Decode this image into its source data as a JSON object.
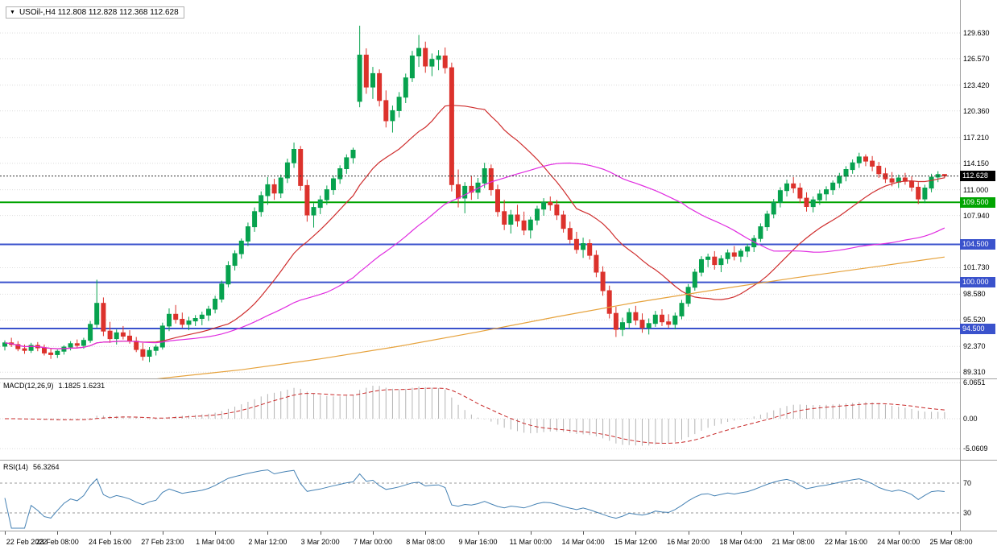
{
  "header": {
    "dropdown_icon": "▼",
    "text": "USOil-,H4 112.808 112.828 112.368 112.628"
  },
  "colors": {
    "candle_up": "#07a24e",
    "candle_down": "#dc322c",
    "grid": "#dcdcdc",
    "separator": "#a0a0a0",
    "current_price_line": "#303030",
    "current_price_badge_bg": "#000000",
    "support_green": "#00a400",
    "support_blue": "#3a52cc",
    "ma_red": "#cf2e2e",
    "ma_magenta": "#e02ce0",
    "ma_orange": "#e6a23c",
    "macd_hist": "#b4b4b4",
    "macd_signal": "#c82a2a",
    "rsi_line": "#4682b4",
    "rsi_levels": "#9a9a9a",
    "axis_text": "#000000"
  },
  "chart_data": {
    "type": "candlestick",
    "symbol": "USOil-",
    "timeframe": "H4",
    "ohlc_readout": {
      "open": "112.808",
      "high": "112.828",
      "low": "112.368",
      "close": "112.628"
    },
    "price_range": [
      88.57,
      133.55
    ],
    "price_axis_labels": [
      "129.630",
      "126.570",
      "123.420",
      "120.360",
      "117.210",
      "114.150",
      "111.000",
      "107.940",
      "101.730",
      "98.580",
      "95.520",
      "92.370",
      "89.310"
    ],
    "current_price": {
      "label": "112.628",
      "value": 112.628
    },
    "horizontal_lines": [
      {
        "label": "109.500",
        "value": 109.5,
        "color_key": "support_green"
      },
      {
        "label": "104.500",
        "value": 104.5,
        "color_key": "support_blue"
      },
      {
        "label": "100.000",
        "value": 100.0,
        "color_key": "support_blue"
      },
      {
        "label": "94.500",
        "value": 94.5,
        "color_key": "support_blue"
      }
    ],
    "candles": [
      [
        92.4,
        93.1,
        91.9,
        92.8
      ],
      [
        92.8,
        93.4,
        92.3,
        92.6
      ],
      [
        92.6,
        93.0,
        91.8,
        92.1
      ],
      [
        92.1,
        92.6,
        91.5,
        91.9
      ],
      [
        91.9,
        92.8,
        91.6,
        92.5
      ],
      [
        92.5,
        92.9,
        91.8,
        92.2
      ],
      [
        92.2,
        92.6,
        91.3,
        91.6
      ],
      [
        91.6,
        92.2,
        90.9,
        91.4
      ],
      [
        91.4,
        92.0,
        91.0,
        91.8
      ],
      [
        91.8,
        92.5,
        91.4,
        92.3
      ],
      [
        92.3,
        93.0,
        91.9,
        92.7
      ],
      [
        92.7,
        93.2,
        92.2,
        92.5
      ],
      [
        92.5,
        93.4,
        92.1,
        93.1
      ],
      [
        93.1,
        95.4,
        92.8,
        95.0
      ],
      [
        95.0,
        100.3,
        94.6,
        97.5
      ],
      [
        97.5,
        98.2,
        93.6,
        94.2
      ],
      [
        94.2,
        95.3,
        92.8,
        93.3
      ],
      [
        93.3,
        94.4,
        92.6,
        94.0
      ],
      [
        94.0,
        94.8,
        93.2,
        93.6
      ],
      [
        93.6,
        94.3,
        92.7,
        93.0
      ],
      [
        93.0,
        93.5,
        91.7,
        92.0
      ],
      [
        92.0,
        92.8,
        90.7,
        91.2
      ],
      [
        91.2,
        92.3,
        90.5,
        91.9
      ],
      [
        91.9,
        92.6,
        91.3,
        92.3
      ],
      [
        92.3,
        95.2,
        92.0,
        94.8
      ],
      [
        94.8,
        96.9,
        94.2,
        96.2
      ],
      [
        96.2,
        97.3,
        95.1,
        95.6
      ],
      [
        95.6,
        96.4,
        94.6,
        95.0
      ],
      [
        95.0,
        95.9,
        94.3,
        95.4
      ],
      [
        95.4,
        96.1,
        94.8,
        95.7
      ],
      [
        95.7,
        96.5,
        94.9,
        96.1
      ],
      [
        96.1,
        97.2,
        95.4,
        96.8
      ],
      [
        96.8,
        98.4,
        96.3,
        98.0
      ],
      [
        98.0,
        100.2,
        97.6,
        99.8
      ],
      [
        99.8,
        102.5,
        99.4,
        102.0
      ],
      [
        102.0,
        103.8,
        101.4,
        103.4
      ],
      [
        103.4,
        105.2,
        102.8,
        104.9
      ],
      [
        104.9,
        107.1,
        104.3,
        106.6
      ],
      [
        106.6,
        108.9,
        106.0,
        108.4
      ],
      [
        108.4,
        110.8,
        107.8,
        110.3
      ],
      [
        110.3,
        112.5,
        109.2,
        111.6
      ],
      [
        111.6,
        112.3,
        109.8,
        110.6
      ],
      [
        110.6,
        112.8,
        110.0,
        112.4
      ],
      [
        112.4,
        114.7,
        111.8,
        114.2
      ],
      [
        114.2,
        116.6,
        113.6,
        115.8
      ],
      [
        115.8,
        116.2,
        110.9,
        111.5
      ],
      [
        111.5,
        112.2,
        107.2,
        108.0
      ],
      [
        108.0,
        109.4,
        106.5,
        108.9
      ],
      [
        108.9,
        110.3,
        108.1,
        109.8
      ],
      [
        109.8,
        111.5,
        109.2,
        111.0
      ],
      [
        111.0,
        112.7,
        110.4,
        112.3
      ],
      [
        112.3,
        113.9,
        111.7,
        113.5
      ],
      [
        113.5,
        115.2,
        112.9,
        114.8
      ],
      [
        114.8,
        116.0,
        114.1,
        115.7
      ],
      [
        121.5,
        130.5,
        120.8,
        127.0
      ],
      [
        127.0,
        127.8,
        122.4,
        123.2
      ],
      [
        123.2,
        125.6,
        121.8,
        124.8
      ],
      [
        124.8,
        125.3,
        120.9,
        121.6
      ],
      [
        121.6,
        122.8,
        118.4,
        119.2
      ],
      [
        119.2,
        121.0,
        117.8,
        120.4
      ],
      [
        120.4,
        122.6,
        119.6,
        122.0
      ],
      [
        122.0,
        124.8,
        121.3,
        124.3
      ],
      [
        124.3,
        127.5,
        123.8,
        126.9
      ],
      [
        126.9,
        129.4,
        125.6,
        127.8
      ],
      [
        127.8,
        128.6,
        124.9,
        125.7
      ],
      [
        125.7,
        127.2,
        124.5,
        126.5
      ],
      [
        126.5,
        127.6,
        125.2,
        126.9
      ],
      [
        126.9,
        127.9,
        124.8,
        125.5
      ],
      [
        125.5,
        126.1,
        110.8,
        111.6
      ],
      [
        111.6,
        113.4,
        108.9,
        110.0
      ],
      [
        110.0,
        111.9,
        108.2,
        111.4
      ],
      [
        111.4,
        112.6,
        109.8,
        110.7
      ],
      [
        110.7,
        112.4,
        109.9,
        111.8
      ],
      [
        111.8,
        114.2,
        111.2,
        113.5
      ],
      [
        113.5,
        114.0,
        110.3,
        111.0
      ],
      [
        111.0,
        111.6,
        107.8,
        108.4
      ],
      [
        108.4,
        109.8,
        106.2,
        106.9
      ],
      [
        106.9,
        108.6,
        105.8,
        108.0
      ],
      [
        108.0,
        109.2,
        106.6,
        107.3
      ],
      [
        107.3,
        108.4,
        105.6,
        106.2
      ],
      [
        106.2,
        107.8,
        105.2,
        107.4
      ],
      [
        107.4,
        109.1,
        106.8,
        108.7
      ],
      [
        108.7,
        110.0,
        107.9,
        109.5
      ],
      [
        109.5,
        110.2,
        108.5,
        109.2
      ],
      [
        109.2,
        109.8,
        107.4,
        108.0
      ],
      [
        108.0,
        108.5,
        105.9,
        106.4
      ],
      [
        106.4,
        107.2,
        104.6,
        105.1
      ],
      [
        105.1,
        106.0,
        103.4,
        103.9
      ],
      [
        103.9,
        105.3,
        102.9,
        104.6
      ],
      [
        104.6,
        105.1,
        102.7,
        103.2
      ],
      [
        103.2,
        103.8,
        100.6,
        101.2
      ],
      [
        101.2,
        101.9,
        98.4,
        99.0
      ],
      [
        99.0,
        99.6,
        95.7,
        96.3
      ],
      [
        96.3,
        97.1,
        93.5,
        94.4
      ],
      [
        94.4,
        95.8,
        93.6,
        95.2
      ],
      [
        95.2,
        96.9,
        94.5,
        96.4
      ],
      [
        96.4,
        97.2,
        94.9,
        95.5
      ],
      [
        95.5,
        96.3,
        94.0,
        94.6
      ],
      [
        94.6,
        95.7,
        93.8,
        95.1
      ],
      [
        95.1,
        96.6,
        94.7,
        96.1
      ],
      [
        96.1,
        96.8,
        94.8,
        95.3
      ],
      [
        95.3,
        96.2,
        94.6,
        95.0
      ],
      [
        95.0,
        96.4,
        94.4,
        96.0
      ],
      [
        96.0,
        97.9,
        95.6,
        97.5
      ],
      [
        97.5,
        99.8,
        97.1,
        99.4
      ],
      [
        99.4,
        101.6,
        99.0,
        101.2
      ],
      [
        101.2,
        103.1,
        100.7,
        102.7
      ],
      [
        102.7,
        103.4,
        101.8,
        103.0
      ],
      [
        103.0,
        103.7,
        101.5,
        102.1
      ],
      [
        102.1,
        103.2,
        101.2,
        102.8
      ],
      [
        102.8,
        103.9,
        102.2,
        103.5
      ],
      [
        103.5,
        104.3,
        102.6,
        103.1
      ],
      [
        103.1,
        104.0,
        102.4,
        103.7
      ],
      [
        103.7,
        104.6,
        103.0,
        104.2
      ],
      [
        104.2,
        105.6,
        103.6,
        105.2
      ],
      [
        105.2,
        107.0,
        104.8,
        106.6
      ],
      [
        106.6,
        108.5,
        106.1,
        108.1
      ],
      [
        108.1,
        109.9,
        107.6,
        109.5
      ],
      [
        109.5,
        111.3,
        108.9,
        110.9
      ],
      [
        110.9,
        112.2,
        110.2,
        111.7
      ],
      [
        111.7,
        112.5,
        110.6,
        111.2
      ],
      [
        111.2,
        111.8,
        109.4,
        110.0
      ],
      [
        110.0,
        110.7,
        108.4,
        109.0
      ],
      [
        109.0,
        110.2,
        108.3,
        109.8
      ],
      [
        109.8,
        111.0,
        109.2,
        110.5
      ],
      [
        110.5,
        111.4,
        109.7,
        111.0
      ],
      [
        111.0,
        112.1,
        110.4,
        111.8
      ],
      [
        111.8,
        113.0,
        111.2,
        112.6
      ],
      [
        112.6,
        113.8,
        112.0,
        113.4
      ],
      [
        113.4,
        114.6,
        112.9,
        114.2
      ],
      [
        114.2,
        115.4,
        113.6,
        114.9
      ],
      [
        114.9,
        115.2,
        113.8,
        114.4
      ],
      [
        114.4,
        115.0,
        113.2,
        113.8
      ],
      [
        113.8,
        114.3,
        112.4,
        112.9
      ],
      [
        112.9,
        113.6,
        111.8,
        112.3
      ],
      [
        112.3,
        113.1,
        111.4,
        111.9
      ],
      [
        111.9,
        112.8,
        111.2,
        112.4
      ],
      [
        112.4,
        113.0,
        111.6,
        112.0
      ],
      [
        112.0,
        112.6,
        110.8,
        111.3
      ],
      [
        111.3,
        111.9,
        109.3,
        109.9
      ],
      [
        109.9,
        111.6,
        109.4,
        111.2
      ],
      [
        111.2,
        112.9,
        110.7,
        112.5
      ],
      [
        112.5,
        113.2,
        111.9,
        112.8
      ],
      [
        112.81,
        112.83,
        112.37,
        112.63
      ]
    ],
    "moving_averages": [
      {
        "name": "ma-fast-red",
        "mode": "sma",
        "period": 20,
        "color_key": "ma_red"
      },
      {
        "name": "ma-medium-magenta",
        "mode": "sma",
        "period": 50,
        "color_key": "ma_magenta"
      },
      {
        "name": "ma-slow-orange",
        "mode": "points",
        "color_key": "ma_orange",
        "points": [
          [
            18,
            88.0
          ],
          [
            24,
            88.6
          ],
          [
            36,
            89.6
          ],
          [
            48,
            90.9
          ],
          [
            60,
            92.4
          ],
          [
            72,
            94.1
          ],
          [
            84,
            95.9
          ],
          [
            96,
            97.6
          ],
          [
            108,
            99.1
          ],
          [
            120,
            100.5
          ],
          [
            132,
            101.8
          ],
          [
            143,
            103.0
          ]
        ]
      }
    ],
    "macd": {
      "title": "MACD(12,26,9)",
      "values_text": "1.1825 1.6231",
      "periods": [
        12,
        26,
        9
      ],
      "axis_labels": [
        "6.0651",
        "0.00",
        "-5.0609"
      ],
      "axis_range": [
        -5.0609,
        6.0651
      ]
    },
    "rsi": {
      "title": "RSI(14)",
      "value_text": "56.3264",
      "period": 14,
      "levels": [
        "70",
        "30"
      ]
    },
    "time_axis": {
      "label_bar_step": 8,
      "labels": [
        "22 Feb 2022",
        "23 Feb 08:00",
        "24 Feb 16:00",
        "27 Feb 23:00",
        "1 Mar 04:00",
        "2 Mar 12:00",
        "3 Mar 20:00",
        "7 Mar 00:00",
        "8 Mar 08:00",
        "9 Mar 16:00",
        "11 Mar 00:00",
        "14 Mar 04:00",
        "15 Mar 12:00",
        "16 Mar 20:00",
        "18 Mar 04:00",
        "21 Mar 08:00",
        "22 Mar 16:00",
        "24 Mar 00:00",
        "25 Mar 08:00"
      ]
    }
  }
}
